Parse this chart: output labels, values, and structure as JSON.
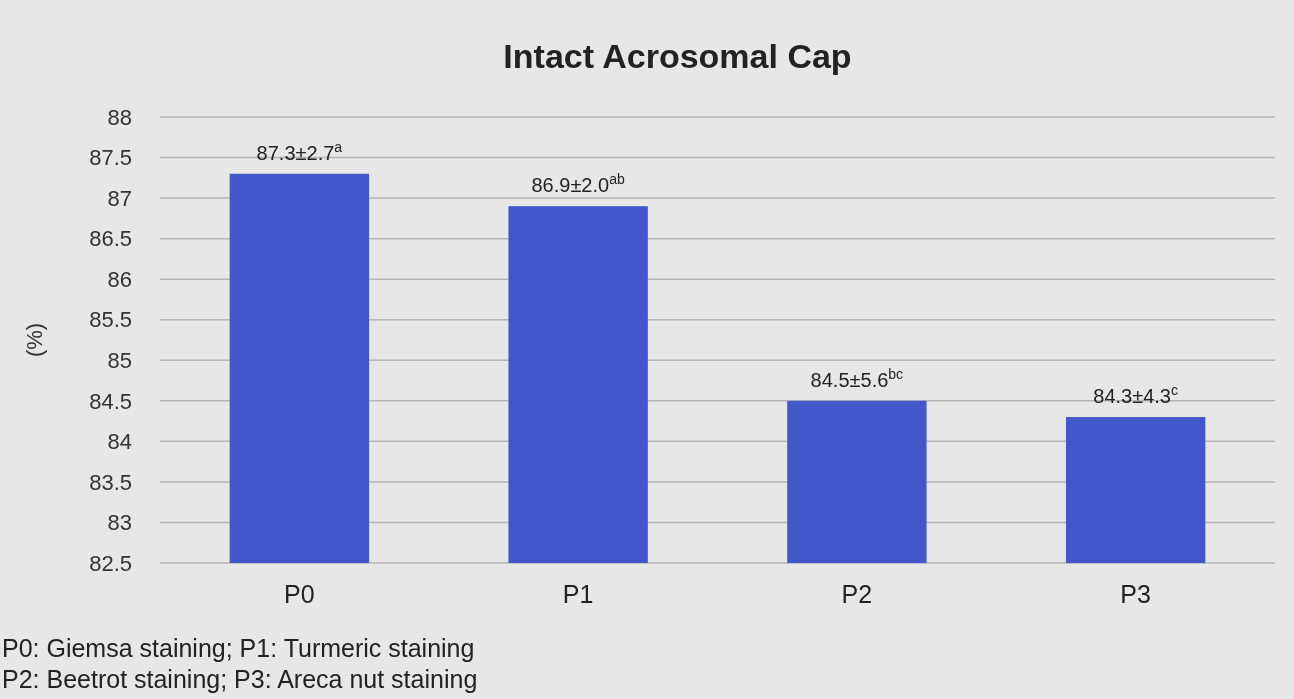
{
  "chart_data": {
    "type": "bar",
    "title": "Intact Acrosomal Cap",
    "ylabel": "(%)",
    "categories": [
      "P0",
      "P1",
      "P2",
      "P3"
    ],
    "values": [
      87.3,
      86.9,
      84.5,
      84.3
    ],
    "value_labels": [
      "87.3±2.7$^{a}$",
      "86.9±2.0$^{ab}$",
      "84.5±5.6$^{bc}$",
      "84.3±4.3$^{c}$"
    ],
    "color": "#4257c9",
    "ylim": [
      82.5,
      88
    ],
    "yticks": [
      82.5,
      83,
      83.5,
      84,
      84.5,
      85,
      85.5,
      86,
      86.5,
      87,
      87.5,
      88
    ],
    "grid": "y",
    "annotations": [
      "P0: Giemsa staining; P1: Turmeric staining",
      "P2: Beetrot staining; P3: Areca nut staining"
    ]
  }
}
